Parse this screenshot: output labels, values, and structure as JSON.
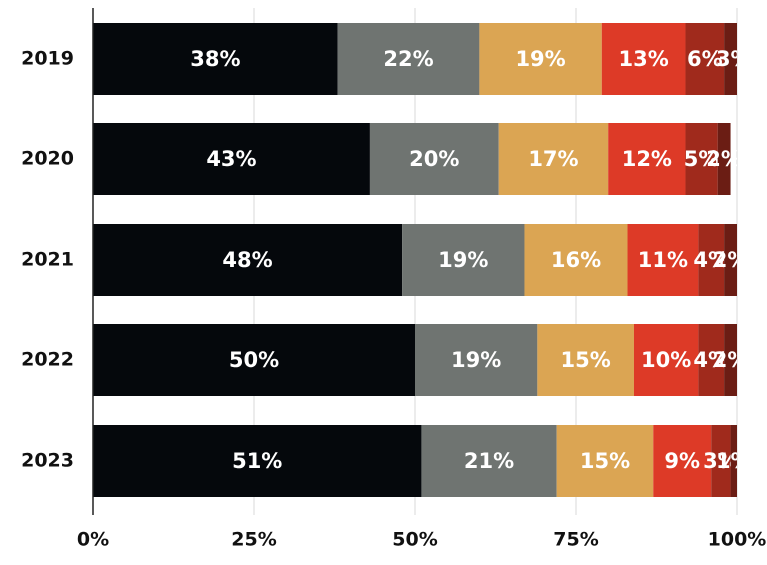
{
  "chart_data": {
    "type": "stacked-bar-horizontal",
    "categories": [
      "2019",
      "2020",
      "2021",
      "2022",
      "2023"
    ],
    "series": [
      {
        "color": "#05080c",
        "values": [
          38,
          43,
          48,
          50,
          51
        ],
        "value_labels": [
          "38%",
          "43%",
          "48%",
          "50%",
          "51%"
        ]
      },
      {
        "color": "#6f7471",
        "values": [
          22,
          20,
          19,
          19,
          21
        ],
        "value_labels": [
          "22%",
          "20%",
          "19%",
          "19%",
          "21%"
        ]
      },
      {
        "color": "#dba553",
        "values": [
          19,
          17,
          16,
          15,
          15
        ],
        "value_labels": [
          "19%",
          "17%",
          "16%",
          "15%",
          "15%"
        ]
      },
      {
        "color": "#dd3a27",
        "values": [
          13,
          12,
          11,
          10,
          9
        ],
        "value_labels": [
          "13%",
          "12%",
          "11%",
          "10%",
          "9%"
        ]
      },
      {
        "color": "#a02a1c",
        "values": [
          6,
          5,
          4,
          4,
          3
        ],
        "value_labels": [
          "6%",
          "5%",
          "4%",
          "4%",
          "3%"
        ]
      },
      {
        "color": "#6b1d14",
        "values": [
          3,
          2,
          2,
          2,
          1
        ],
        "value_labels": [
          "3%",
          "2%",
          "2%",
          "2%",
          "1%"
        ]
      }
    ],
    "xlim": [
      0,
      100
    ],
    "xticks": [
      {
        "value": 0,
        "label": "0%"
      },
      {
        "value": 25,
        "label": "25%"
      },
      {
        "value": 50,
        "label": "50%"
      },
      {
        "value": 75,
        "label": "75%"
      },
      {
        "value": 100,
        "label": "100%"
      }
    ],
    "grid": true
  }
}
